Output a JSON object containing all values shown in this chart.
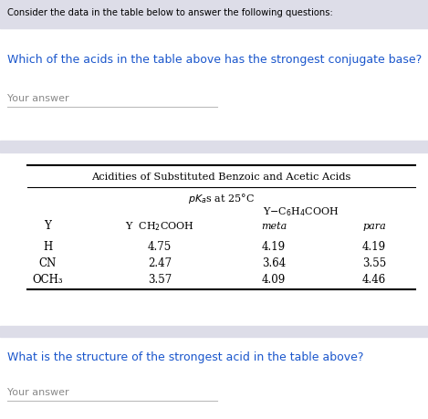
{
  "title_text": "Consider the data in the table below to answer the following questions:",
  "q1_text": "Which of the acids in the table above has the strongest conjugate base?",
  "q1_answer_label": "Your answer",
  "q2_text": "What is the structure of the strongest acid in the table above?",
  "q2_answer_label": "Your answer",
  "table_title": "Acidities of Substituted Benzoic and Acetic Acids",
  "rows": [
    {
      "Y": "H",
      "acetic": "4.75",
      "meta": "4.19",
      "para": "4.19"
    },
    {
      "Y": "CN",
      "acetic": "2.47",
      "meta": "3.64",
      "para": "3.55"
    },
    {
      "Y": "OCH₃",
      "acetic": "3.57",
      "meta": "4.09",
      "para": "4.46"
    }
  ],
  "bg_color": "#ffffff",
  "section_bg": "#dddde8",
  "title_color": "#000000",
  "question_color": "#1a56cc",
  "answer_color": "#888888",
  "answer_line_color": "#bbbbbb",
  "fig_width": 4.69,
  "fig_height": 4.6,
  "dpi": 100
}
